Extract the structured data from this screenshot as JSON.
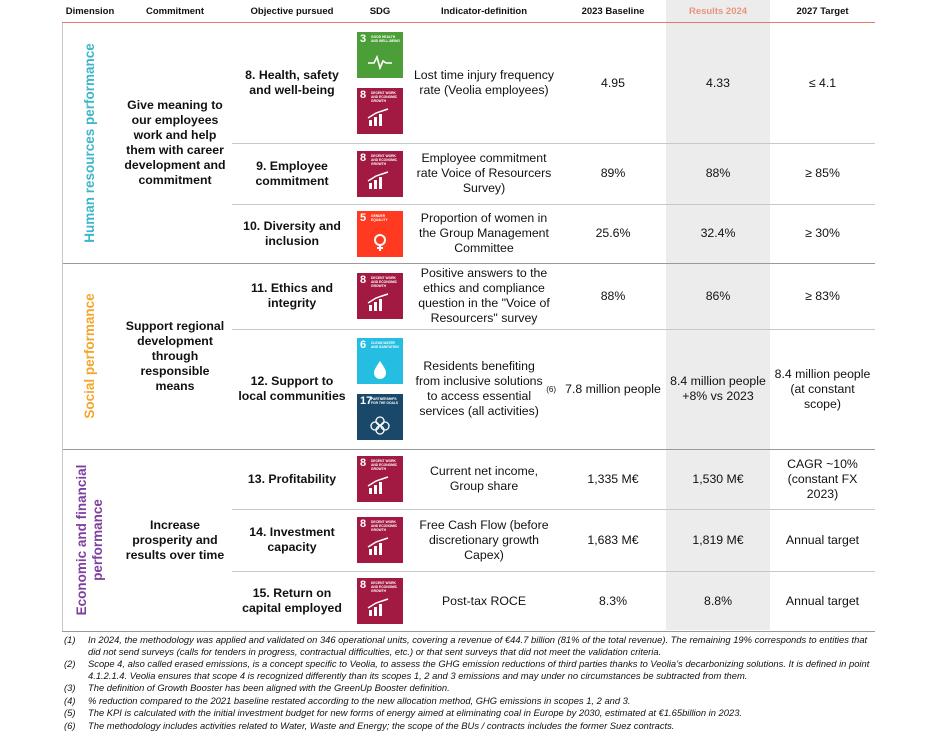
{
  "header": {
    "columns": [
      "Dimension",
      "Commitment",
      "Objective pursued",
      "SDG",
      "Indicator-definition",
      "2023 Baseline",
      "Results  2024",
      "2027 Target"
    ]
  },
  "dimensions": [
    {
      "label": "Human resources performance",
      "color": "#3cb6c8",
      "commitment": "Give meaning to our employees work and help them with career development and commitment",
      "rows": [
        {
          "objective": "8. Health, safety and well-being",
          "sdgs": [
            {
              "number": "3",
              "title": "GOOD HEALTH AND WELL-BEING",
              "color": "#4c9f38"
            },
            {
              "number": "8",
              "title": "DECENT WORK AND ECONOMIC GROWTH",
              "color": "#a21942"
            }
          ],
          "indicator": "Lost time injury frequency rate (Veolia employees)",
          "baseline": "4.95",
          "results": "4.33",
          "target": "≤ 4.1"
        },
        {
          "objective": "9. Employee commitment",
          "sdgs": [
            {
              "number": "8",
              "title": "DECENT WORK AND ECONOMIC GROWTH",
              "color": "#a21942"
            }
          ],
          "indicator": "Employee commitment rate Voice of Resourcers Survey)",
          "baseline": "89%",
          "results": "88%",
          "target": "≥ 85%"
        },
        {
          "objective": "10. Diversity and inclusion",
          "sdgs": [
            {
              "number": "5",
              "title": "GENDER EQUALITY",
              "color": "#ff3a21"
            }
          ],
          "indicator": "Proportion of women in the Group Management Committee",
          "baseline": "25.6%",
          "results": "32.4%",
          "target": "≥ 30%"
        }
      ]
    },
    {
      "label": "Social performance",
      "color": "#f3a62a",
      "commitment": "Support regional development through responsible means",
      "rows": [
        {
          "objective": "11. Ethics and integrity",
          "sdgs": [
            {
              "number": "8",
              "title": "DECENT WORK AND ECONOMIC GROWTH",
              "color": "#a21942"
            }
          ],
          "indicator": "Positive answers to the ethics and compliance question in the \"Voice of Resourcers\" survey",
          "baseline": "88%",
          "results": "86%",
          "target": "≥ 83%"
        },
        {
          "objective": "12. Support to local communities",
          "sdgs": [
            {
              "number": "6",
              "title": "CLEAN WATER AND SANITATION",
              "color": "#26bde2"
            },
            {
              "number": "17",
              "title": "PARTNERSHIPS FOR THE GOALS",
              "color": "#19486a"
            }
          ],
          "indicator": "Residents benefiting from inclusive solutions to access essential services (all activities)",
          "indicator_note": "(6)",
          "baseline": "7.8 million people",
          "results": "8.4 million people +8% vs 2023",
          "target": "8.4 million people (at constant scope)"
        }
      ]
    },
    {
      "label": "Economic and financial performance",
      "color": "#7e3f9e",
      "commitment": "Increase prosperity and results over time",
      "rows": [
        {
          "objective": "13. Profitability",
          "sdgs": [
            {
              "number": "8",
              "title": "DECENT WORK AND ECONOMIC GROWTH",
              "color": "#a21942"
            }
          ],
          "indicator": "Current net income, Group share",
          "baseline": "1,335 M€",
          "results": "1,530 M€",
          "target": "CAGR ~10% (constant FX 2023)"
        },
        {
          "objective": "14. Investment capacity",
          "sdgs": [
            {
              "number": "8",
              "title": "DECENT WORK AND ECONOMIC GROWTH",
              "color": "#a21942"
            }
          ],
          "indicator": "Free Cash Flow (before discretionary growth Capex)",
          "baseline": "1,683 M€",
          "results": "1,819 M€",
          "target": "Annual target"
        },
        {
          "objective": "15. Return on capital employed",
          "sdgs": [
            {
              "number": "8",
              "title": "DECENT WORK AND ECONOMIC GROWTH",
              "color": "#a21942"
            }
          ],
          "indicator": "Post-tax ROCE",
          "baseline": "8.3%",
          "results": "8.8%",
          "target": "Annual target"
        }
      ]
    }
  ],
  "footnotes": [
    {
      "marker": "(1)",
      "text": "In 2024, the methodology was applied and validated on 346 operational units, covering a revenue of €44.7 billion (81% of the total revenue). The remaining 19% corresponds to entities that did not send surveys (calls for tenders in progress, contractual difficulties, etc.) or that sent surveys that did not meet the validation criteria."
    },
    {
      "marker": "(2)",
      "text": "Scope 4, also called erased emissions, is a concept specific to Veolia, to assess the GHG emission reductions of third parties thanks to Veolia’s decarbonizing solutions. It is defined in point 4.1.2.1.4. Veolia ensures that scope 4 is recognized differently than its scopes 1, 2 and 3 emissions and may under no circumstances be subtracted from them."
    },
    {
      "marker": "(3)",
      "text": "The definition of Growth Booster has been aligned with the GreenUp Booster definition."
    },
    {
      "marker": "(4)",
      "text": "% reduction compared to the 2021 baseline restated according to the new allocation method, GHG emissions in scopes 1, 2 and 3."
    },
    {
      "marker": "(5)",
      "text": "The KPI is calculated with the initial investment budget for new forms of energy aimed at eliminating coal in Europe by 2030, estimated at €1.65billion in 2023."
    },
    {
      "marker": "(6)",
      "text": "The methodology includes activities related to Water, Waste and Energy; the scope of the BUs / contracts includes the former Suez contracts."
    }
  ]
}
